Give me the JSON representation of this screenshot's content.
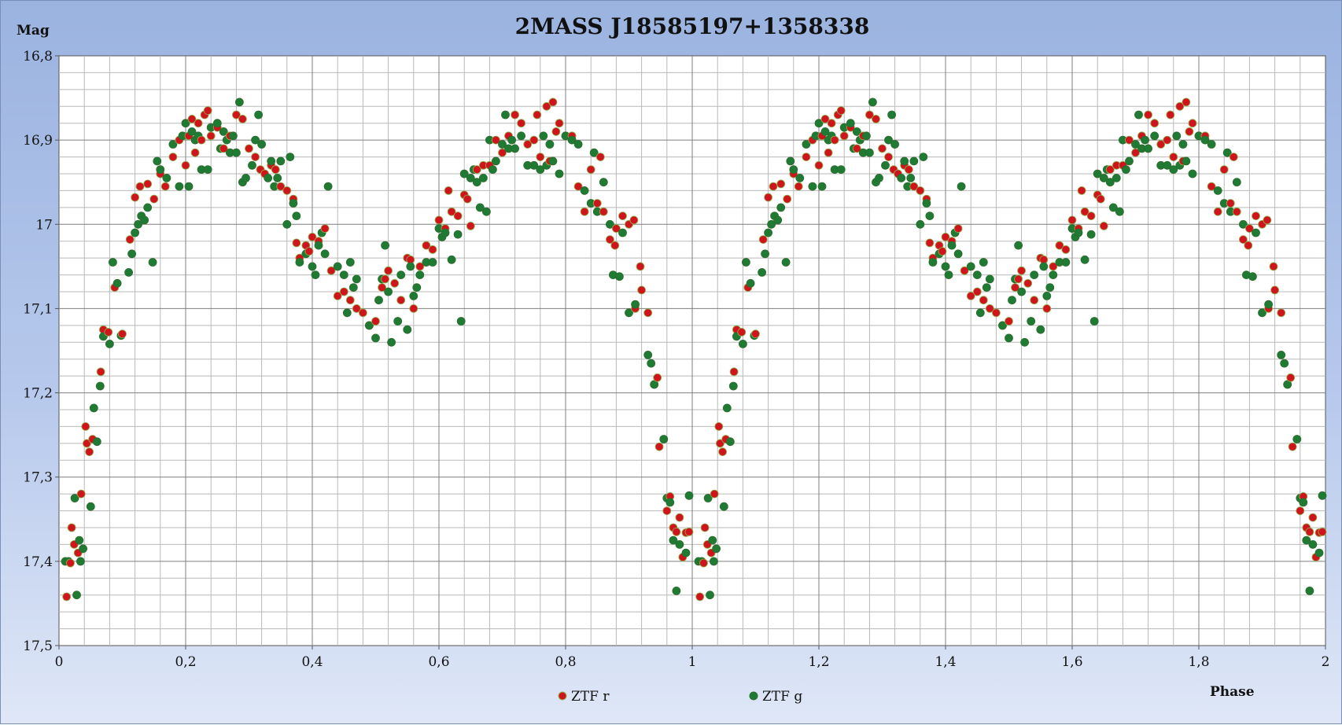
{
  "chart_data": {
    "type": "scatter",
    "title": "2MASS J18585197+1358338",
    "xlabel": "Phase",
    "ylabel": "Mag",
    "xlim": [
      0,
      2
    ],
    "ylim": [
      16.8,
      17.5
    ],
    "y_inverted": true,
    "grid": true,
    "legend_position": "bottom",
    "x_ticks": [
      "0",
      "0,2",
      "0,4",
      "0,6",
      "0,8",
      "1",
      "1,2",
      "1,4",
      "1,6",
      "1,8",
      "2"
    ],
    "y_ticks": [
      "16,8",
      "16,9",
      "17",
      "17,1",
      "17,2",
      "17,3",
      "17,4",
      "17,5"
    ],
    "period_repeat": 1,
    "series": [
      {
        "name": "ZTF r",
        "color": "#d0141e",
        "points": [
          [
            0.012,
            17.442
          ],
          [
            0.018,
            17.402
          ],
          [
            0.02,
            17.36
          ],
          [
            0.024,
            17.38
          ],
          [
            0.03,
            17.39
          ],
          [
            0.035,
            17.32
          ],
          [
            0.042,
            17.24
          ],
          [
            0.044,
            17.26
          ],
          [
            0.048,
            17.27
          ],
          [
            0.053,
            17.255
          ],
          [
            0.066,
            17.175
          ],
          [
            0.07,
            17.125
          ],
          [
            0.078,
            17.128
          ],
          [
            0.088,
            17.075
          ],
          [
            0.1,
            17.13
          ],
          [
            0.112,
            17.018
          ],
          [
            0.12,
            16.968
          ],
          [
            0.128,
            16.955
          ],
          [
            0.14,
            16.952
          ],
          [
            0.15,
            16.97
          ],
          [
            0.16,
            16.94
          ],
          [
            0.168,
            16.955
          ],
          [
            0.18,
            16.92
          ],
          [
            0.19,
            16.9
          ],
          [
            0.2,
            16.93
          ],
          [
            0.205,
            16.895
          ],
          [
            0.21,
            16.875
          ],
          [
            0.215,
            16.915
          ],
          [
            0.22,
            16.88
          ],
          [
            0.225,
            16.9
          ],
          [
            0.23,
            16.87
          ],
          [
            0.235,
            16.865
          ],
          [
            0.24,
            16.895
          ],
          [
            0.25,
            16.885
          ],
          [
            0.26,
            16.91
          ],
          [
            0.27,
            16.895
          ],
          [
            0.28,
            16.87
          ],
          [
            0.29,
            16.875
          ],
          [
            0.3,
            16.91
          ],
          [
            0.31,
            16.92
          ],
          [
            0.318,
            16.935
          ],
          [
            0.325,
            16.94
          ],
          [
            0.335,
            16.93
          ],
          [
            0.342,
            16.935
          ],
          [
            0.35,
            16.955
          ],
          [
            0.36,
            16.96
          ],
          [
            0.37,
            16.97
          ],
          [
            0.375,
            17.022
          ],
          [
            0.38,
            17.04
          ],
          [
            0.39,
            17.025
          ],
          [
            0.395,
            17.032
          ],
          [
            0.4,
            17.015
          ],
          [
            0.41,
            17.02
          ],
          [
            0.42,
            17.005
          ],
          [
            0.43,
            17.055
          ],
          [
            0.44,
            17.085
          ],
          [
            0.45,
            17.08
          ],
          [
            0.46,
            17.09
          ],
          [
            0.47,
            17.1
          ],
          [
            0.48,
            17.105
          ],
          [
            0.49,
            17.12
          ],
          [
            0.5,
            17.115
          ],
          [
            0.51,
            17.075
          ],
          [
            0.515,
            17.065
          ],
          [
            0.52,
            17.055
          ],
          [
            0.53,
            17.07
          ],
          [
            0.54,
            17.09
          ],
          [
            0.55,
            17.04
          ],
          [
            0.555,
            17.042
          ],
          [
            0.56,
            17.1
          ],
          [
            0.57,
            17.05
          ],
          [
            0.58,
            17.025
          ],
          [
            0.59,
            17.03
          ],
          [
            0.6,
            16.995
          ],
          [
            0.61,
            17.005
          ],
          [
            0.615,
            16.96
          ],
          [
            0.62,
            16.985
          ],
          [
            0.63,
            16.99
          ],
          [
            0.64,
            16.965
          ],
          [
            0.645,
            16.97
          ],
          [
            0.65,
            17.002
          ],
          [
            0.66,
            16.935
          ],
          [
            0.67,
            16.93
          ],
          [
            0.68,
            16.93
          ],
          [
            0.69,
            16.9
          ],
          [
            0.7,
            16.915
          ],
          [
            0.71,
            16.895
          ],
          [
            0.72,
            16.87
          ],
          [
            0.73,
            16.88
          ],
          [
            0.74,
            16.905
          ],
          [
            0.75,
            16.9
          ],
          [
            0.755,
            16.87
          ],
          [
            0.76,
            16.92
          ],
          [
            0.77,
            16.86
          ],
          [
            0.775,
            16.925
          ],
          [
            0.78,
            16.855
          ],
          [
            0.785,
            16.89
          ],
          [
            0.79,
            16.88
          ],
          [
            0.8,
            16.895
          ],
          [
            0.81,
            16.895
          ],
          [
            0.82,
            16.955
          ],
          [
            0.83,
            16.985
          ],
          [
            0.84,
            16.935
          ],
          [
            0.85,
            16.975
          ],
          [
            0.855,
            16.92
          ],
          [
            0.86,
            16.985
          ],
          [
            0.87,
            17.018
          ],
          [
            0.88,
            17.005
          ],
          [
            0.89,
            16.99
          ],
          [
            0.9,
            17.0
          ],
          [
            0.91,
            17.1
          ],
          [
            0.92,
            17.078
          ],
          [
            0.93,
            17.105
          ],
          [
            0.94,
            17.19
          ],
          [
            0.945,
            17.182
          ],
          [
            0.948,
            17.264
          ],
          [
            0.96,
            17.34
          ],
          [
            0.97,
            17.36
          ],
          [
            0.975,
            17.365
          ],
          [
            0.98,
            17.348
          ],
          [
            0.985,
            17.395
          ],
          [
            0.99,
            17.366
          ],
          [
            0.995,
            17.365
          ],
          [
            0.965,
            17.323
          ],
          [
            0.918,
            17.05
          ],
          [
            0.908,
            16.995
          ],
          [
            0.878,
            17.025
          ]
        ]
      },
      {
        "name": "ZTF g",
        "color": "#1f7a33",
        "points": [
          [
            0.01,
            17.4
          ],
          [
            0.015,
            17.4
          ],
          [
            0.025,
            17.325
          ],
          [
            0.028,
            17.44
          ],
          [
            0.032,
            17.375
          ],
          [
            0.034,
            17.4
          ],
          [
            0.038,
            17.385
          ],
          [
            0.05,
            17.335
          ],
          [
            0.055,
            17.218
          ],
          [
            0.06,
            17.258
          ],
          [
            0.065,
            17.192
          ],
          [
            0.07,
            17.133
          ],
          [
            0.08,
            17.142
          ],
          [
            0.085,
            17.045
          ],
          [
            0.092,
            17.07
          ],
          [
            0.098,
            17.132
          ],
          [
            0.11,
            17.057
          ],
          [
            0.115,
            17.035
          ],
          [
            0.12,
            17.01
          ],
          [
            0.125,
            17.0
          ],
          [
            0.13,
            16.99
          ],
          [
            0.135,
            16.995
          ],
          [
            0.14,
            16.98
          ],
          [
            0.148,
            17.045
          ],
          [
            0.155,
            16.925
          ],
          [
            0.16,
            16.935
          ],
          [
            0.17,
            16.945
          ],
          [
            0.18,
            16.905
          ],
          [
            0.19,
            16.955
          ],
          [
            0.195,
            16.895
          ],
          [
            0.2,
            16.88
          ],
          [
            0.205,
            16.955
          ],
          [
            0.21,
            16.89
          ],
          [
            0.215,
            16.9
          ],
          [
            0.22,
            16.895
          ],
          [
            0.225,
            16.935
          ],
          [
            0.235,
            16.935
          ],
          [
            0.24,
            16.885
          ],
          [
            0.25,
            16.88
          ],
          [
            0.255,
            16.91
          ],
          [
            0.26,
            16.89
          ],
          [
            0.265,
            16.9
          ],
          [
            0.27,
            16.915
          ],
          [
            0.275,
            16.895
          ],
          [
            0.28,
            16.915
          ],
          [
            0.285,
            16.855
          ],
          [
            0.29,
            16.95
          ],
          [
            0.295,
            16.945
          ],
          [
            0.305,
            16.93
          ],
          [
            0.31,
            16.9
          ],
          [
            0.315,
            16.87
          ],
          [
            0.32,
            16.905
          ],
          [
            0.33,
            16.945
          ],
          [
            0.335,
            16.925
          ],
          [
            0.34,
            16.955
          ],
          [
            0.345,
            16.945
          ],
          [
            0.35,
            16.925
          ],
          [
            0.36,
            17.0
          ],
          [
            0.365,
            16.92
          ],
          [
            0.37,
            16.975
          ],
          [
            0.375,
            16.99
          ],
          [
            0.38,
            17.045
          ],
          [
            0.39,
            17.035
          ],
          [
            0.4,
            17.05
          ],
          [
            0.405,
            17.06
          ],
          [
            0.41,
            17.025
          ],
          [
            0.415,
            17.01
          ],
          [
            0.42,
            17.035
          ],
          [
            0.425,
            16.955
          ],
          [
            0.44,
            17.05
          ],
          [
            0.45,
            17.06
          ],
          [
            0.455,
            17.105
          ],
          [
            0.46,
            17.045
          ],
          [
            0.465,
            17.075
          ],
          [
            0.47,
            17.065
          ],
          [
            0.49,
            17.12
          ],
          [
            0.5,
            17.135
          ],
          [
            0.505,
            17.09
          ],
          [
            0.51,
            17.065
          ],
          [
            0.515,
            17.025
          ],
          [
            0.52,
            17.08
          ],
          [
            0.525,
            17.14
          ],
          [
            0.535,
            17.115
          ],
          [
            0.54,
            17.06
          ],
          [
            0.55,
            17.125
          ],
          [
            0.555,
            17.05
          ],
          [
            0.56,
            17.085
          ],
          [
            0.565,
            17.075
          ],
          [
            0.57,
            17.06
          ],
          [
            0.58,
            17.045
          ],
          [
            0.59,
            17.045
          ],
          [
            0.6,
            17.005
          ],
          [
            0.605,
            17.015
          ],
          [
            0.61,
            17.01
          ],
          [
            0.62,
            17.042
          ],
          [
            0.63,
            17.012
          ],
          [
            0.635,
            17.115
          ],
          [
            0.64,
            16.94
          ],
          [
            0.65,
            16.945
          ],
          [
            0.655,
            16.935
          ],
          [
            0.66,
            16.95
          ],
          [
            0.665,
            16.98
          ],
          [
            0.67,
            16.945
          ],
          [
            0.675,
            16.985
          ],
          [
            0.68,
            16.9
          ],
          [
            0.685,
            16.935
          ],
          [
            0.69,
            16.925
          ],
          [
            0.7,
            16.905
          ],
          [
            0.705,
            16.87
          ],
          [
            0.71,
            16.91
          ],
          [
            0.715,
            16.9
          ],
          [
            0.72,
            16.91
          ],
          [
            0.73,
            16.895
          ],
          [
            0.74,
            16.93
          ],
          [
            0.75,
            16.93
          ],
          [
            0.76,
            16.935
          ],
          [
            0.765,
            16.895
          ],
          [
            0.77,
            16.93
          ],
          [
            0.775,
            16.905
          ],
          [
            0.78,
            16.925
          ],
          [
            0.79,
            16.94
          ],
          [
            0.8,
            16.895
          ],
          [
            0.81,
            16.9
          ],
          [
            0.82,
            16.905
          ],
          [
            0.83,
            16.96
          ],
          [
            0.84,
            16.975
          ],
          [
            0.85,
            16.985
          ],
          [
            0.86,
            16.95
          ],
          [
            0.87,
            17.0
          ],
          [
            0.875,
            17.06
          ],
          [
            0.885,
            17.062
          ],
          [
            0.89,
            17.01
          ],
          [
            0.9,
            17.105
          ],
          [
            0.91,
            17.095
          ],
          [
            0.93,
            17.155
          ],
          [
            0.935,
            17.165
          ],
          [
            0.94,
            17.19
          ],
          [
            0.955,
            17.255
          ],
          [
            0.96,
            17.325
          ],
          [
            0.965,
            17.33
          ],
          [
            0.97,
            17.375
          ],
          [
            0.975,
            17.435
          ],
          [
            0.98,
            17.38
          ],
          [
            0.99,
            17.39
          ],
          [
            0.995,
            17.322
          ],
          [
            0.845,
            16.915
          ]
        ]
      }
    ]
  },
  "legend": [
    {
      "label": "ZTF r",
      "color": "#d0141e"
    },
    {
      "label": "ZTF g",
      "color": "#1f7a33"
    }
  ]
}
